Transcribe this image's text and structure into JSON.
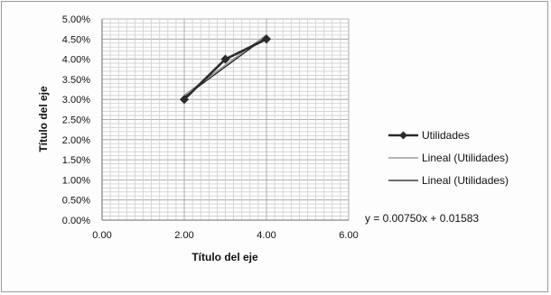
{
  "chart_data": {
    "type": "line",
    "x": [
      2,
      3,
      4
    ],
    "series": [
      {
        "name": "Utilidades",
        "values": [
          0.03,
          0.04,
          0.045
        ],
        "color": "#2b2b2b",
        "marker": "diamond"
      },
      {
        "name": "Lineal (Utilidades)",
        "trendline": true,
        "slope": 0.0075,
        "intercept": 0.01583,
        "color": "#888888"
      },
      {
        "name": "Lineal (Utilidades)",
        "trendline": true,
        "slope": 0.0075,
        "intercept": 0.01583,
        "color": "#1a1a1a"
      }
    ],
    "xlim": [
      0,
      6
    ],
    "ylim": [
      0,
      0.05
    ],
    "xticks": [
      "0.00",
      "2.00",
      "4.00",
      "6.00"
    ],
    "yticks": [
      "0.00%",
      "0.50%",
      "1.00%",
      "1.50%",
      "2.00%",
      "2.50%",
      "3.00%",
      "3.50%",
      "4.00%",
      "4.50%",
      "5.00%"
    ],
    "xlabel": "Título del eje",
    "ylabel": "Título del eje",
    "equation": "y = 0.00750x + 0.01583",
    "grid": true,
    "legend_position": "right"
  }
}
